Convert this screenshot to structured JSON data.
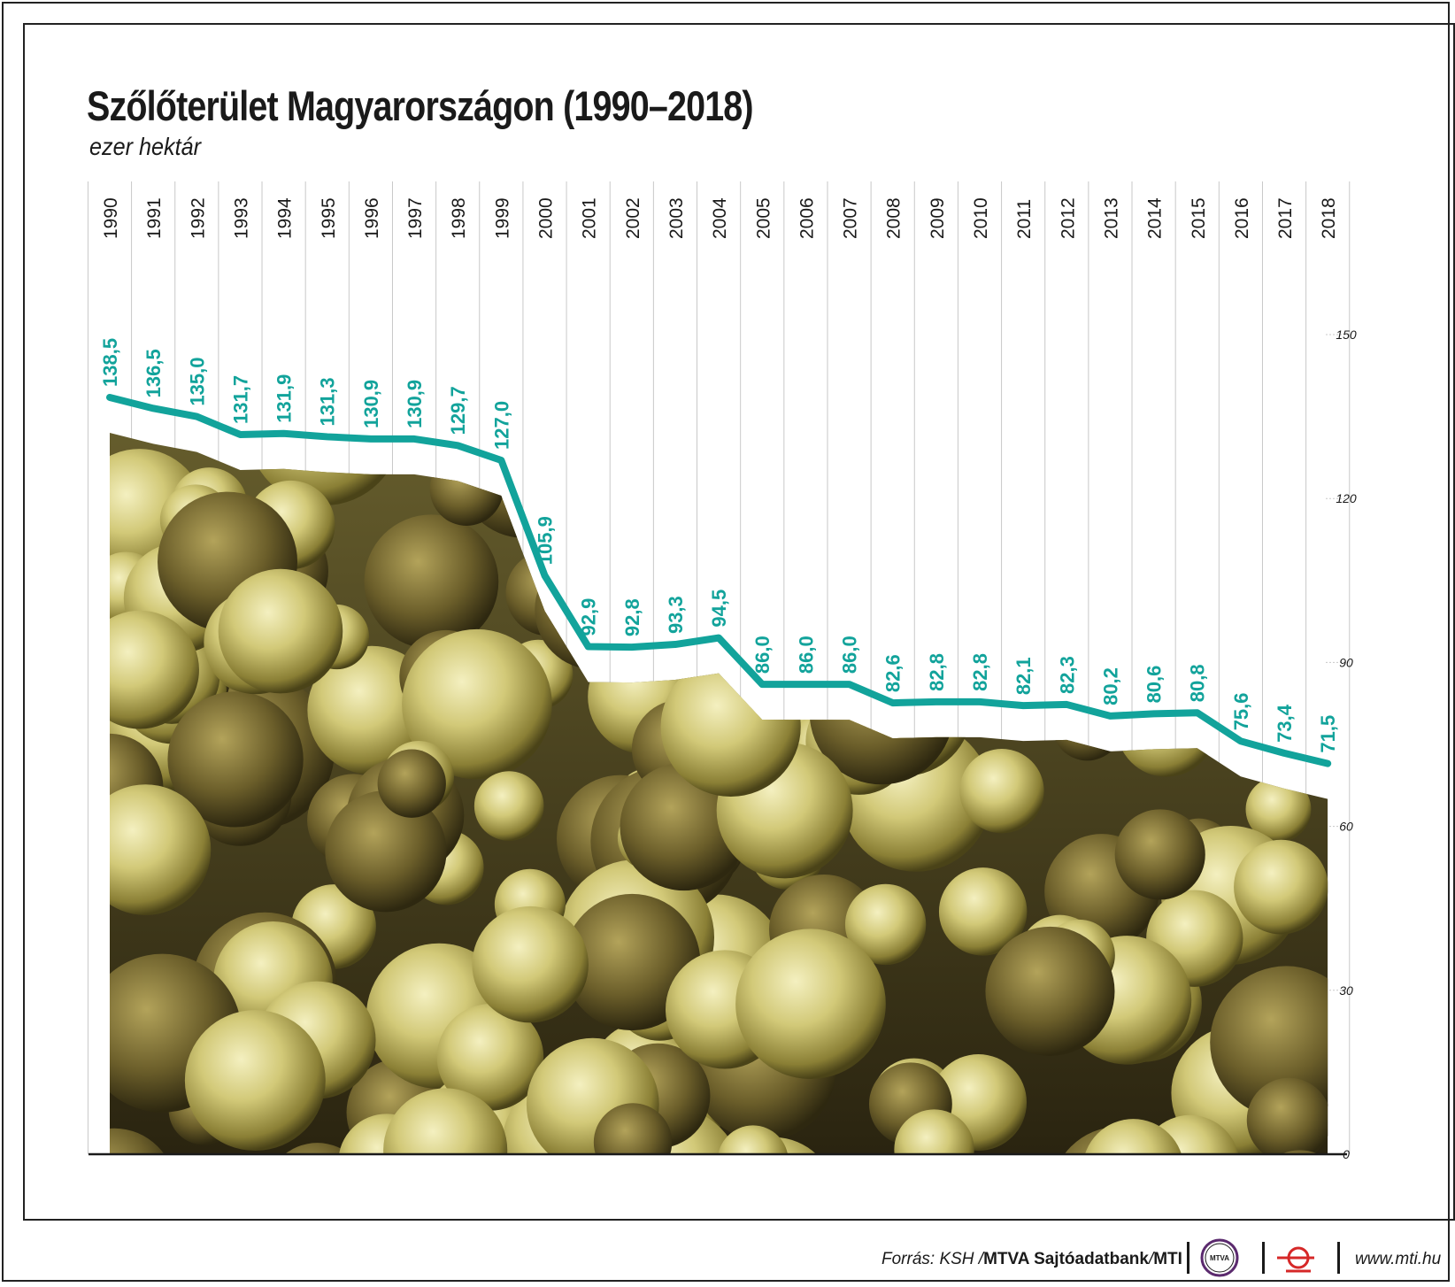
{
  "header": {
    "title": "Szőlőterület Magyarországon (1990–2018)",
    "subtitle": "ezer hektár"
  },
  "footer": {
    "source_prefix": "Forrás: KSH / ",
    "source_agency": "MTVA Sajtóadatbank",
    "source_mid": " / ",
    "source_mti": "MTI",
    "mtva_logo_text": "MTVA",
    "website": "www.mti.hu"
  },
  "colors": {
    "line": "#12a39b",
    "label": "#12a39b",
    "grid": "#c8c8c8",
    "axis": "#1a1a1a",
    "text": "#1a1a1a"
  },
  "background_image": "white-grape-cluster-photo",
  "chart_data": {
    "type": "line",
    "title": "Szőlőterület Magyarországon (1990–2018)",
    "subtitle": "ezer hektár",
    "xlabel": "",
    "ylabel": "",
    "x": [
      "1990",
      "1991",
      "1992",
      "1993",
      "1994",
      "1995",
      "1996",
      "1997",
      "1998",
      "1999",
      "2000",
      "2001",
      "2002",
      "2003",
      "2004",
      "2005",
      "2006",
      "2007",
      "2008",
      "2009",
      "2010",
      "2011",
      "2012",
      "2013",
      "2014",
      "2015",
      "2016",
      "2017",
      "2018"
    ],
    "values": [
      138.5,
      136.5,
      135.0,
      131.7,
      131.9,
      131.3,
      130.9,
      130.9,
      129.7,
      127.0,
      105.9,
      92.9,
      92.8,
      93.3,
      94.5,
      86.0,
      86.0,
      86.0,
      82.6,
      82.8,
      82.8,
      82.1,
      82.3,
      80.2,
      80.6,
      80.8,
      75.6,
      73.4,
      71.5
    ],
    "value_labels": [
      "138,5",
      "136,5",
      "135,0",
      "131,7",
      "131,9",
      "131,3",
      "130,9",
      "130,9",
      "129,7",
      "127,0",
      "105,9",
      "92,9",
      "92,8",
      "93,3",
      "94,5",
      "86,0",
      "86,0",
      "86,0",
      "82,6",
      "82,8",
      "82,8",
      "82,1",
      "82,3",
      "80,2",
      "80,6",
      "80,8",
      "75,6",
      "73,4",
      "71,5"
    ],
    "ylim": [
      0,
      150
    ],
    "yticks": [
      0,
      30,
      60,
      90,
      120,
      150
    ],
    "y_axis_position": "right",
    "grid": true,
    "background": "photo of white grapes filling the area under the line"
  }
}
